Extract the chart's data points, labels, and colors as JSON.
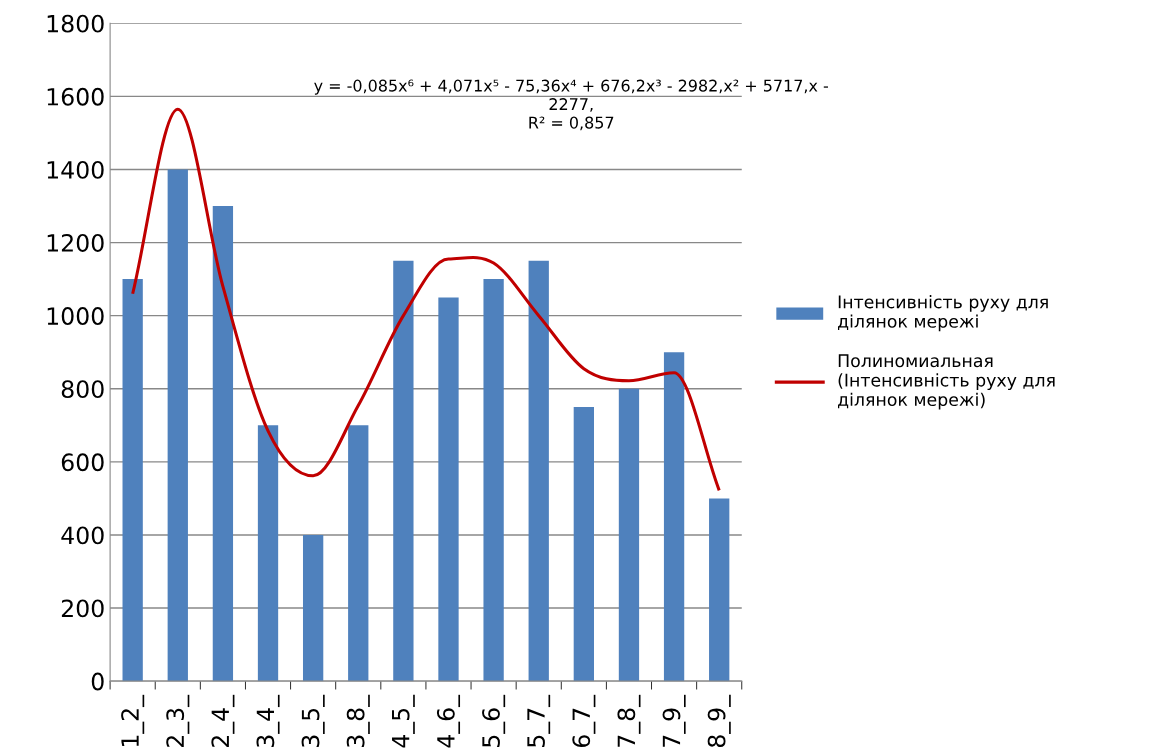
{
  "chart_data": {
    "type": "bar",
    "categories": [
      "1_2_",
      "2_3_",
      "2_4_",
      "3_4_",
      "3_5_",
      "3_8_",
      "4_5_",
      "4_6_",
      "5_6_",
      "5_7_",
      "6_7_",
      "7_8_",
      "7_9_",
      "8_9_"
    ],
    "series": [
      {
        "name": "Інтенсивність руху для ділянок мережі",
        "color": "#4f81bd",
        "values": [
          1100,
          1400,
          1300,
          700,
          400,
          700,
          1150,
          1050,
          1100,
          1150,
          750,
          800,
          900,
          500
        ]
      },
      {
        "name": "Полиномиальная (Інтенсивність руху для ділянок мережі)",
        "type": "line",
        "color": "#c00000",
        "values": [
          1060,
          1565,
          1080,
          685,
          562,
          754,
          1000,
          1155,
          1144,
          1000,
          855,
          822,
          844,
          522
        ]
      }
    ],
    "ylim": [
      0,
      1800
    ],
    "yticks": [
      0,
      200,
      400,
      600,
      800,
      1000,
      1200,
      1400,
      1600,
      1800
    ],
    "grid": "y",
    "legend": "right",
    "annotations": [
      "y = -0,085x⁶ + 4,071x⁵ - 75,36x⁴ + 676,2x³ - 2982,x² + 5717,x -\n2277,\nR² = 0,857"
    ]
  }
}
